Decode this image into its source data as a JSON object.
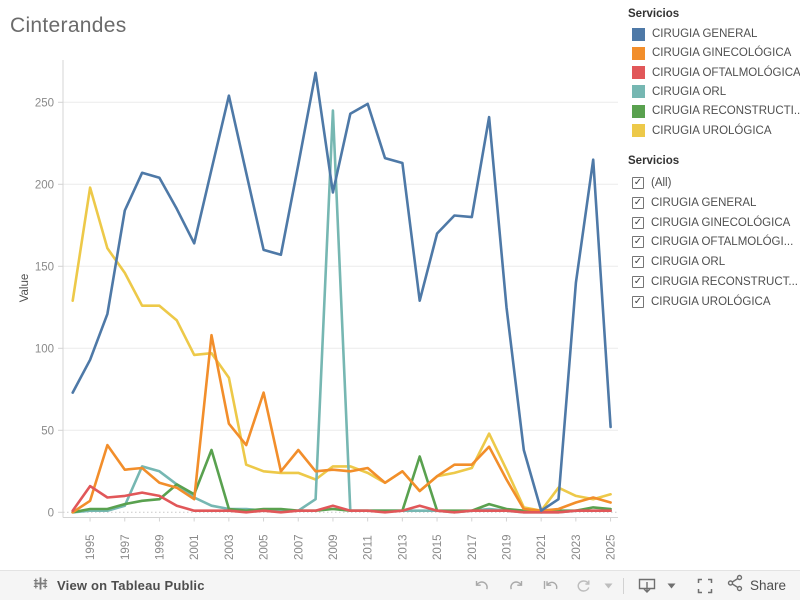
{
  "title": "Cinterandes",
  "legend": {
    "title": "Servicios",
    "items": [
      {
        "label": "CIRUGIA GENERAL",
        "color": "#4e79a7"
      },
      {
        "label": "CIRUGIA GINECOLÓGICA",
        "color": "#f28e2b"
      },
      {
        "label": "CIRUGIA OFTALMOLÓGICA",
        "color": "#e15759"
      },
      {
        "label": "CIRUGIA ORL",
        "color": "#76b7b2"
      },
      {
        "label": "CIRUGIA RECONSTRUCTI...",
        "color": "#59a14f"
      },
      {
        "label": "CIRUGIA UROLÓGICA",
        "color": "#edc949"
      }
    ]
  },
  "filter": {
    "title": "Servicios",
    "items": [
      {
        "label": "(All)",
        "checked": true
      },
      {
        "label": "CIRUGIA GENERAL",
        "checked": true
      },
      {
        "label": "CIRUGIA GINECOLÓGICA",
        "checked": true
      },
      {
        "label": "CIRUGIA OFTALMOLÓGI...",
        "checked": true
      },
      {
        "label": "CIRUGIA ORL",
        "checked": true
      },
      {
        "label": "CIRUGIA RECONSTRUCT...",
        "checked": true
      },
      {
        "label": "CIRUGIA UROLÓGICA",
        "checked": true
      }
    ]
  },
  "toolbar": {
    "view_label": "View on Tableau Public",
    "share_label": "Share",
    "check_glyph": "✓"
  },
  "chart_data": {
    "type": "line",
    "title": "Cinterandes",
    "xlabel": "",
    "ylabel": "Value",
    "grid": "horizontal",
    "legend_position": "right",
    "ylim": [
      0,
      275
    ],
    "y_ticks": [
      0,
      50,
      100,
      150,
      200,
      250
    ],
    "x_tick_labels": [
      "1995",
      "1997",
      "1999",
      "2001",
      "2003",
      "2005",
      "2007",
      "2009",
      "2011",
      "2013",
      "2015",
      "2017",
      "2019",
      "2021",
      "2023",
      "2025"
    ],
    "x": [
      1994,
      1995,
      1996,
      1997,
      1998,
      1999,
      2000,
      2001,
      2002,
      2003,
      2004,
      2005,
      2006,
      2007,
      2008,
      2009,
      2010,
      2011,
      2012,
      2013,
      2014,
      2015,
      2016,
      2017,
      2018,
      2019,
      2020,
      2021,
      2022,
      2023,
      2024,
      2025
    ],
    "series": [
      {
        "name": "CIRUGIA GENERAL",
        "color": "#4e79a7",
        "values": [
          73,
          93,
          121,
          184,
          207,
          204,
          185,
          164,
          209,
          254,
          207,
          160,
          157,
          212,
          268,
          195,
          243,
          249,
          216,
          213,
          129,
          170,
          181,
          180,
          241,
          125,
          38,
          1,
          8,
          140,
          215,
          52
        ]
      },
      {
        "name": "CIRUGIA GINECOLÓGICA",
        "color": "#f28e2b",
        "values": [
          0,
          7,
          41,
          26,
          27,
          18,
          15,
          8,
          108,
          54,
          41,
          73,
          25,
          38,
          25,
          26,
          25,
          27,
          18,
          25,
          13,
          22,
          29,
          29,
          40,
          20,
          2,
          1,
          2,
          6,
          9,
          6
        ]
      },
      {
        "name": "CIRUGIA OFTALMOLÓGICA",
        "color": "#e15759",
        "values": [
          1,
          16,
          9,
          10,
          12,
          10,
          4,
          1,
          1,
          1,
          0,
          1,
          0,
          1,
          1,
          4,
          1,
          1,
          0,
          1,
          4,
          1,
          0,
          1,
          1,
          1,
          0,
          0,
          0,
          1,
          1,
          1
        ]
      },
      {
        "name": "CIRUGIA ORL",
        "color": "#76b7b2",
        "values": [
          0,
          1,
          1,
          4,
          28,
          25,
          17,
          9,
          4,
          2,
          2,
          1,
          1,
          1,
          8,
          245,
          1,
          1,
          1,
          1,
          1,
          1,
          0,
          1,
          2,
          1,
          0,
          0,
          0,
          1,
          1,
          1
        ]
      },
      {
        "name": "CIRUGIA RECONSTRUCTI...",
        "color": "#59a14f",
        "values": [
          0,
          2,
          2,
          5,
          7,
          8,
          17,
          11,
          38,
          2,
          1,
          2,
          2,
          1,
          1,
          2,
          1,
          1,
          1,
          1,
          34,
          1,
          1,
          1,
          5,
          2,
          1,
          0,
          1,
          1,
          3,
          2
        ]
      },
      {
        "name": "CIRUGIA UROLÓGICA",
        "color": "#edc949",
        "values": [
          129,
          198,
          161,
          146,
          126,
          126,
          117,
          96,
          97,
          82,
          29,
          25,
          24,
          24,
          20,
          28,
          28,
          24,
          18,
          25,
          13,
          22,
          24,
          27,
          48,
          26,
          3,
          1,
          15,
          10,
          8,
          11
        ]
      }
    ]
  }
}
